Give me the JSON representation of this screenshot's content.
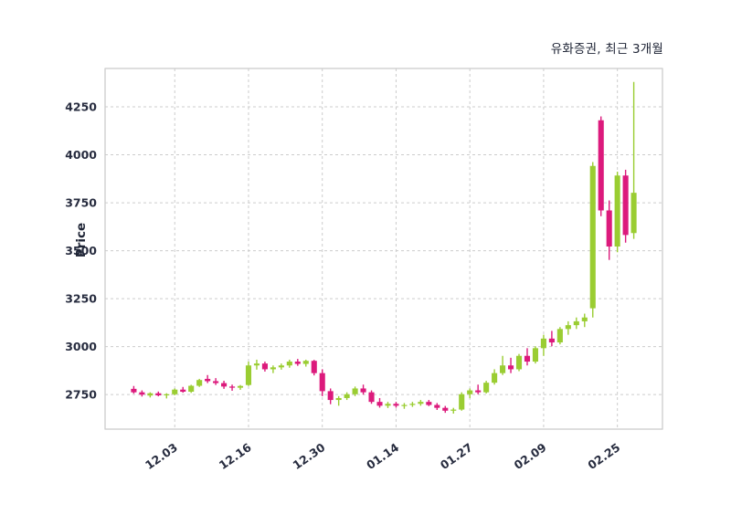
{
  "chart_data": {
    "type": "candlestick",
    "title": "유화증권, 최근 3개월",
    "ylabel": "Price",
    "y_domain": [
      2570,
      4450
    ],
    "y_ticks": [
      2750,
      3000,
      3250,
      3500,
      3750,
      4000,
      4250
    ],
    "x_ticks": [
      {
        "index": 5,
        "label": "12.03"
      },
      {
        "index": 14,
        "label": "12.16"
      },
      {
        "index": 23,
        "label": "12.30"
      },
      {
        "index": 32,
        "label": "01.14"
      },
      {
        "index": 41,
        "label": "01.27"
      },
      {
        "index": 50,
        "label": "02.09"
      },
      {
        "index": 59,
        "label": "02.25"
      }
    ],
    "colors": {
      "up": "#9acd32",
      "down": "#dc1a7c",
      "grid": "#cccccc",
      "border": "#c9c9c9",
      "text": "#272c3f"
    },
    "candles": [
      [
        2780,
        2795,
        2755,
        2762
      ],
      [
        2762,
        2772,
        2740,
        2750
      ],
      [
        2745,
        2762,
        2735,
        2757
      ],
      [
        2757,
        2766,
        2741,
        2746
      ],
      [
        2746,
        2757,
        2730,
        2752
      ],
      [
        2752,
        2782,
        2746,
        2776
      ],
      [
        2776,
        2790,
        2760,
        2765
      ],
      [
        2765,
        2801,
        2759,
        2796
      ],
      [
        2796,
        2832,
        2790,
        2826
      ],
      [
        2832,
        2852,
        2810,
        2820
      ],
      [
        2820,
        2836,
        2800,
        2810
      ],
      [
        2810,
        2822,
        2780,
        2792
      ],
      [
        2792,
        2802,
        2770,
        2786
      ],
      [
        2786,
        2800,
        2775,
        2795
      ],
      [
        2800,
        2922,
        2795,
        2902
      ],
      [
        2902,
        2932,
        2880,
        2912
      ],
      [
        2912,
        2922,
        2870,
        2882
      ],
      [
        2882,
        2902,
        2862,
        2892
      ],
      [
        2892,
        2912,
        2880,
        2902
      ],
      [
        2902,
        2932,
        2890,
        2922
      ],
      [
        2922,
        2936,
        2900,
        2910
      ],
      [
        2910,
        2932,
        2896,
        2926
      ],
      [
        2926,
        2931,
        2850,
        2862
      ],
      [
        2862,
        2882,
        2742,
        2768
      ],
      [
        2768,
        2782,
        2700,
        2722
      ],
      [
        2722,
        2742,
        2692,
        2732
      ],
      [
        2732,
        2762,
        2722,
        2752
      ],
      [
        2752,
        2792,
        2742,
        2782
      ],
      [
        2782,
        2802,
        2750,
        2762
      ],
      [
        2762,
        2772,
        2702,
        2712
      ],
      [
        2712,
        2732,
        2682,
        2692
      ],
      [
        2692,
        2712,
        2680,
        2702
      ],
      [
        2702,
        2712,
        2682,
        2692
      ],
      [
        2692,
        2706,
        2676,
        2696
      ],
      [
        2696,
        2712,
        2686,
        2702
      ],
      [
        2702,
        2722,
        2692,
        2712
      ],
      [
        2712,
        2722,
        2690,
        2696
      ],
      [
        2696,
        2706,
        2670,
        2681
      ],
      [
        2681,
        2691,
        2655,
        2666
      ],
      [
        2666,
        2681,
        2651,
        2672
      ],
      [
        2672,
        2762,
        2666,
        2752
      ],
      [
        2752,
        2782,
        2731,
        2772
      ],
      [
        2772,
        2802,
        2752,
        2762
      ],
      [
        2762,
        2822,
        2756,
        2812
      ],
      [
        2812,
        2882,
        2802,
        2862
      ],
      [
        2862,
        2952,
        2852,
        2902
      ],
      [
        2902,
        2942,
        2862,
        2882
      ],
      [
        2882,
        2962,
        2872,
        2952
      ],
      [
        2952,
        2992,
        2902,
        2922
      ],
      [
        2922,
        3002,
        2912,
        2992
      ],
      [
        2992,
        3062,
        2952,
        3042
      ],
      [
        3042,
        3082,
        3002,
        3022
      ],
      [
        3022,
        3102,
        3012,
        3092
      ],
      [
        3092,
        3132,
        3062,
        3112
      ],
      [
        3112,
        3152,
        3092,
        3132
      ],
      [
        3132,
        3172,
        3102,
        3152
      ],
      [
        3200,
        3962,
        3152,
        3942
      ],
      [
        4180,
        4200,
        3680,
        3710
      ],
      [
        3710,
        3762,
        3452,
        3522
      ],
      [
        3522,
        3912,
        3492,
        3892
      ],
      [
        3892,
        3922,
        3542,
        3582
      ],
      [
        3592,
        4380,
        3562,
        3802
      ]
    ]
  }
}
